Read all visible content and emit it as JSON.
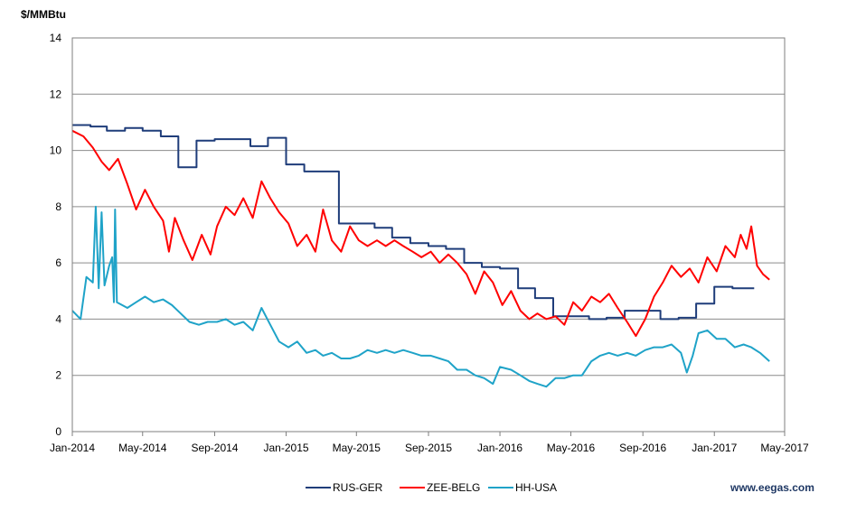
{
  "chart_data": {
    "type": "line",
    "ylabel": "$/MMBtu",
    "ylim": [
      0,
      14
    ],
    "yticks": [
      "0",
      "2",
      "4",
      "6",
      "8",
      "10",
      "12",
      "14"
    ],
    "xlim": [
      "2014-01",
      "2017-05"
    ],
    "xticks": [
      "Jan-2014",
      "May-2014",
      "Sep-2014",
      "Jan-2015",
      "May-2015",
      "Sep-2015",
      "Jan-2016",
      "May-2016",
      "Sep-2016",
      "Jan-2017",
      "May-2017"
    ],
    "grid": true,
    "legend_position": "bottom",
    "series": [
      {
        "name": "RUS-GER",
        "color": "#1f3d7a",
        "step": true,
        "points": [
          [
            "2014-01-01",
            10.9
          ],
          [
            "2014-02-01",
            10.85
          ],
          [
            "2014-03-01",
            10.7
          ],
          [
            "2014-04-01",
            10.8
          ],
          [
            "2014-05-01",
            10.7
          ],
          [
            "2014-06-01",
            10.5
          ],
          [
            "2014-07-01",
            9.4
          ],
          [
            "2014-08-01",
            10.35
          ],
          [
            "2014-09-01",
            10.4
          ],
          [
            "2014-10-01",
            10.4
          ],
          [
            "2014-11-01",
            10.15
          ],
          [
            "2014-12-01",
            10.45
          ],
          [
            "2015-01-01",
            9.5
          ],
          [
            "2015-02-01",
            9.25
          ],
          [
            "2015-03-01",
            9.25
          ],
          [
            "2015-04-01",
            7.4
          ],
          [
            "2015-05-01",
            7.4
          ],
          [
            "2015-06-01",
            7.25
          ],
          [
            "2015-07-01",
            6.9
          ],
          [
            "2015-08-01",
            6.7
          ],
          [
            "2015-09-01",
            6.6
          ],
          [
            "2015-10-01",
            6.5
          ],
          [
            "2015-11-01",
            6.0
          ],
          [
            "2015-12-01",
            5.85
          ],
          [
            "2016-01-01",
            5.8
          ],
          [
            "2016-02-01",
            5.1
          ],
          [
            "2016-03-01",
            4.75
          ],
          [
            "2016-04-01",
            4.1
          ],
          [
            "2016-05-01",
            4.1
          ],
          [
            "2016-06-01",
            4.0
          ],
          [
            "2016-07-01",
            4.05
          ],
          [
            "2016-08-01",
            4.3
          ],
          [
            "2016-09-01",
            4.3
          ],
          [
            "2016-10-01",
            4.0
          ],
          [
            "2016-11-01",
            4.05
          ],
          [
            "2016-12-01",
            4.55
          ],
          [
            "2017-01-01",
            5.15
          ],
          [
            "2017-02-01",
            5.1
          ],
          [
            "2017-03-10",
            5.1
          ]
        ]
      },
      {
        "name": "ZEE-BELG",
        "color": "#ff0000",
        "step": false,
        "points": [
          [
            "2014-01-01",
            10.7
          ],
          [
            "2014-01-20",
            10.5
          ],
          [
            "2014-02-05",
            10.1
          ],
          [
            "2014-02-20",
            9.6
          ],
          [
            "2014-03-05",
            9.3
          ],
          [
            "2014-03-20",
            9.7
          ],
          [
            "2014-04-05",
            8.8
          ],
          [
            "2014-04-20",
            7.9
          ],
          [
            "2014-05-05",
            8.6
          ],
          [
            "2014-05-20",
            8.0
          ],
          [
            "2014-06-05",
            7.5
          ],
          [
            "2014-06-15",
            6.4
          ],
          [
            "2014-06-25",
            7.6
          ],
          [
            "2014-07-10",
            6.8
          ],
          [
            "2014-07-25",
            6.1
          ],
          [
            "2014-08-10",
            7.0
          ],
          [
            "2014-08-25",
            6.3
          ],
          [
            "2014-09-05",
            7.3
          ],
          [
            "2014-09-20",
            8.0
          ],
          [
            "2014-10-05",
            7.7
          ],
          [
            "2014-10-20",
            8.3
          ],
          [
            "2014-11-05",
            7.6
          ],
          [
            "2014-11-20",
            8.9
          ],
          [
            "2014-12-05",
            8.3
          ],
          [
            "2014-12-20",
            7.8
          ],
          [
            "2015-01-05",
            7.4
          ],
          [
            "2015-01-20",
            6.6
          ],
          [
            "2015-02-05",
            7.0
          ],
          [
            "2015-02-20",
            6.4
          ],
          [
            "2015-03-05",
            7.9
          ],
          [
            "2015-03-20",
            6.8
          ],
          [
            "2015-04-05",
            6.4
          ],
          [
            "2015-04-20",
            7.3
          ],
          [
            "2015-05-05",
            6.8
          ],
          [
            "2015-05-20",
            6.6
          ],
          [
            "2015-06-05",
            6.8
          ],
          [
            "2015-06-20",
            6.6
          ],
          [
            "2015-07-05",
            6.8
          ],
          [
            "2015-07-20",
            6.6
          ],
          [
            "2015-08-05",
            6.4
          ],
          [
            "2015-08-20",
            6.2
          ],
          [
            "2015-09-05",
            6.4
          ],
          [
            "2015-09-20",
            6.0
          ],
          [
            "2015-10-05",
            6.3
          ],
          [
            "2015-10-20",
            6.0
          ],
          [
            "2015-11-05",
            5.6
          ],
          [
            "2015-11-20",
            4.9
          ],
          [
            "2015-12-05",
            5.7
          ],
          [
            "2015-12-20",
            5.3
          ],
          [
            "2016-01-05",
            4.5
          ],
          [
            "2016-01-20",
            5.0
          ],
          [
            "2016-02-05",
            4.3
          ],
          [
            "2016-02-20",
            4.0
          ],
          [
            "2016-03-05",
            4.2
          ],
          [
            "2016-03-20",
            4.0
          ],
          [
            "2016-04-05",
            4.1
          ],
          [
            "2016-04-20",
            3.8
          ],
          [
            "2016-05-05",
            4.6
          ],
          [
            "2016-05-20",
            4.3
          ],
          [
            "2016-06-05",
            4.8
          ],
          [
            "2016-06-20",
            4.6
          ],
          [
            "2016-07-05",
            4.9
          ],
          [
            "2016-07-20",
            4.4
          ],
          [
            "2016-08-05",
            3.9
          ],
          [
            "2016-08-20",
            3.4
          ],
          [
            "2016-09-05",
            4.0
          ],
          [
            "2016-09-20",
            4.8
          ],
          [
            "2016-10-05",
            5.3
          ],
          [
            "2016-10-20",
            5.9
          ],
          [
            "2016-11-05",
            5.5
          ],
          [
            "2016-11-20",
            5.8
          ],
          [
            "2016-12-05",
            5.3
          ],
          [
            "2016-12-20",
            6.2
          ],
          [
            "2017-01-05",
            5.7
          ],
          [
            "2017-01-20",
            6.6
          ],
          [
            "2017-02-05",
            6.2
          ],
          [
            "2017-02-15",
            7.0
          ],
          [
            "2017-02-25",
            6.5
          ],
          [
            "2017-03-05",
            7.3
          ],
          [
            "2017-03-15",
            5.9
          ],
          [
            "2017-03-25",
            5.6
          ],
          [
            "2017-04-05",
            5.4
          ]
        ]
      },
      {
        "name": "HH-USA",
        "color": "#1fa3c8",
        "step": false,
        "points": [
          [
            "2014-01-01",
            4.3
          ],
          [
            "2014-01-15",
            4.0
          ],
          [
            "2014-01-25",
            5.5
          ],
          [
            "2014-02-05",
            5.3
          ],
          [
            "2014-02-10",
            8.0
          ],
          [
            "2014-02-15",
            5.1
          ],
          [
            "2014-02-20",
            7.8
          ],
          [
            "2014-02-25",
            5.2
          ],
          [
            "2014-03-05",
            5.9
          ],
          [
            "2014-03-10",
            6.2
          ],
          [
            "2014-03-13",
            4.6
          ],
          [
            "2014-03-15",
            7.9
          ],
          [
            "2014-03-18",
            4.6
          ],
          [
            "2014-04-05",
            4.4
          ],
          [
            "2014-04-20",
            4.6
          ],
          [
            "2014-05-05",
            4.8
          ],
          [
            "2014-05-20",
            4.6
          ],
          [
            "2014-06-05",
            4.7
          ],
          [
            "2014-06-20",
            4.5
          ],
          [
            "2014-07-05",
            4.2
          ],
          [
            "2014-07-20",
            3.9
          ],
          [
            "2014-08-05",
            3.8
          ],
          [
            "2014-08-20",
            3.9
          ],
          [
            "2014-09-05",
            3.9
          ],
          [
            "2014-09-20",
            4.0
          ],
          [
            "2014-10-05",
            3.8
          ],
          [
            "2014-10-20",
            3.9
          ],
          [
            "2014-11-05",
            3.6
          ],
          [
            "2014-11-20",
            4.4
          ],
          [
            "2014-12-05",
            3.8
          ],
          [
            "2014-12-20",
            3.2
          ],
          [
            "2015-01-05",
            3.0
          ],
          [
            "2015-01-20",
            3.2
          ],
          [
            "2015-02-05",
            2.8
          ],
          [
            "2015-02-20",
            2.9
          ],
          [
            "2015-03-05",
            2.7
          ],
          [
            "2015-03-20",
            2.8
          ],
          [
            "2015-04-05",
            2.6
          ],
          [
            "2015-04-20",
            2.6
          ],
          [
            "2015-05-05",
            2.7
          ],
          [
            "2015-05-20",
            2.9
          ],
          [
            "2015-06-05",
            2.8
          ],
          [
            "2015-06-20",
            2.9
          ],
          [
            "2015-07-05",
            2.8
          ],
          [
            "2015-07-20",
            2.9
          ],
          [
            "2015-08-05",
            2.8
          ],
          [
            "2015-08-20",
            2.7
          ],
          [
            "2015-09-05",
            2.7
          ],
          [
            "2015-09-20",
            2.6
          ],
          [
            "2015-10-05",
            2.5
          ],
          [
            "2015-10-20",
            2.2
          ],
          [
            "2015-11-05",
            2.2
          ],
          [
            "2015-11-20",
            2.0
          ],
          [
            "2015-12-05",
            1.9
          ],
          [
            "2015-12-20",
            1.7
          ],
          [
            "2016-01-01",
            2.3
          ],
          [
            "2016-01-20",
            2.2
          ],
          [
            "2016-02-05",
            2.0
          ],
          [
            "2016-02-20",
            1.8
          ],
          [
            "2016-03-05",
            1.7
          ],
          [
            "2016-03-20",
            1.6
          ],
          [
            "2016-04-05",
            1.9
          ],
          [
            "2016-04-20",
            1.9
          ],
          [
            "2016-05-05",
            2.0
          ],
          [
            "2016-05-20",
            2.0
          ],
          [
            "2016-06-05",
            2.5
          ],
          [
            "2016-06-20",
            2.7
          ],
          [
            "2016-07-05",
            2.8
          ],
          [
            "2016-07-20",
            2.7
          ],
          [
            "2016-08-05",
            2.8
          ],
          [
            "2016-08-20",
            2.7
          ],
          [
            "2016-09-05",
            2.9
          ],
          [
            "2016-09-20",
            3.0
          ],
          [
            "2016-10-05",
            3.0
          ],
          [
            "2016-10-20",
            3.1
          ],
          [
            "2016-11-05",
            2.8
          ],
          [
            "2016-11-15",
            2.1
          ],
          [
            "2016-11-25",
            2.7
          ],
          [
            "2016-12-05",
            3.5
          ],
          [
            "2016-12-20",
            3.6
          ],
          [
            "2017-01-05",
            3.3
          ],
          [
            "2017-01-20",
            3.3
          ],
          [
            "2017-02-05",
            3.0
          ],
          [
            "2017-02-20",
            3.1
          ],
          [
            "2017-03-05",
            3.0
          ],
          [
            "2017-03-20",
            2.8
          ],
          [
            "2017-04-05",
            2.5
          ]
        ]
      }
    ]
  },
  "credit": "www.eegas.com"
}
